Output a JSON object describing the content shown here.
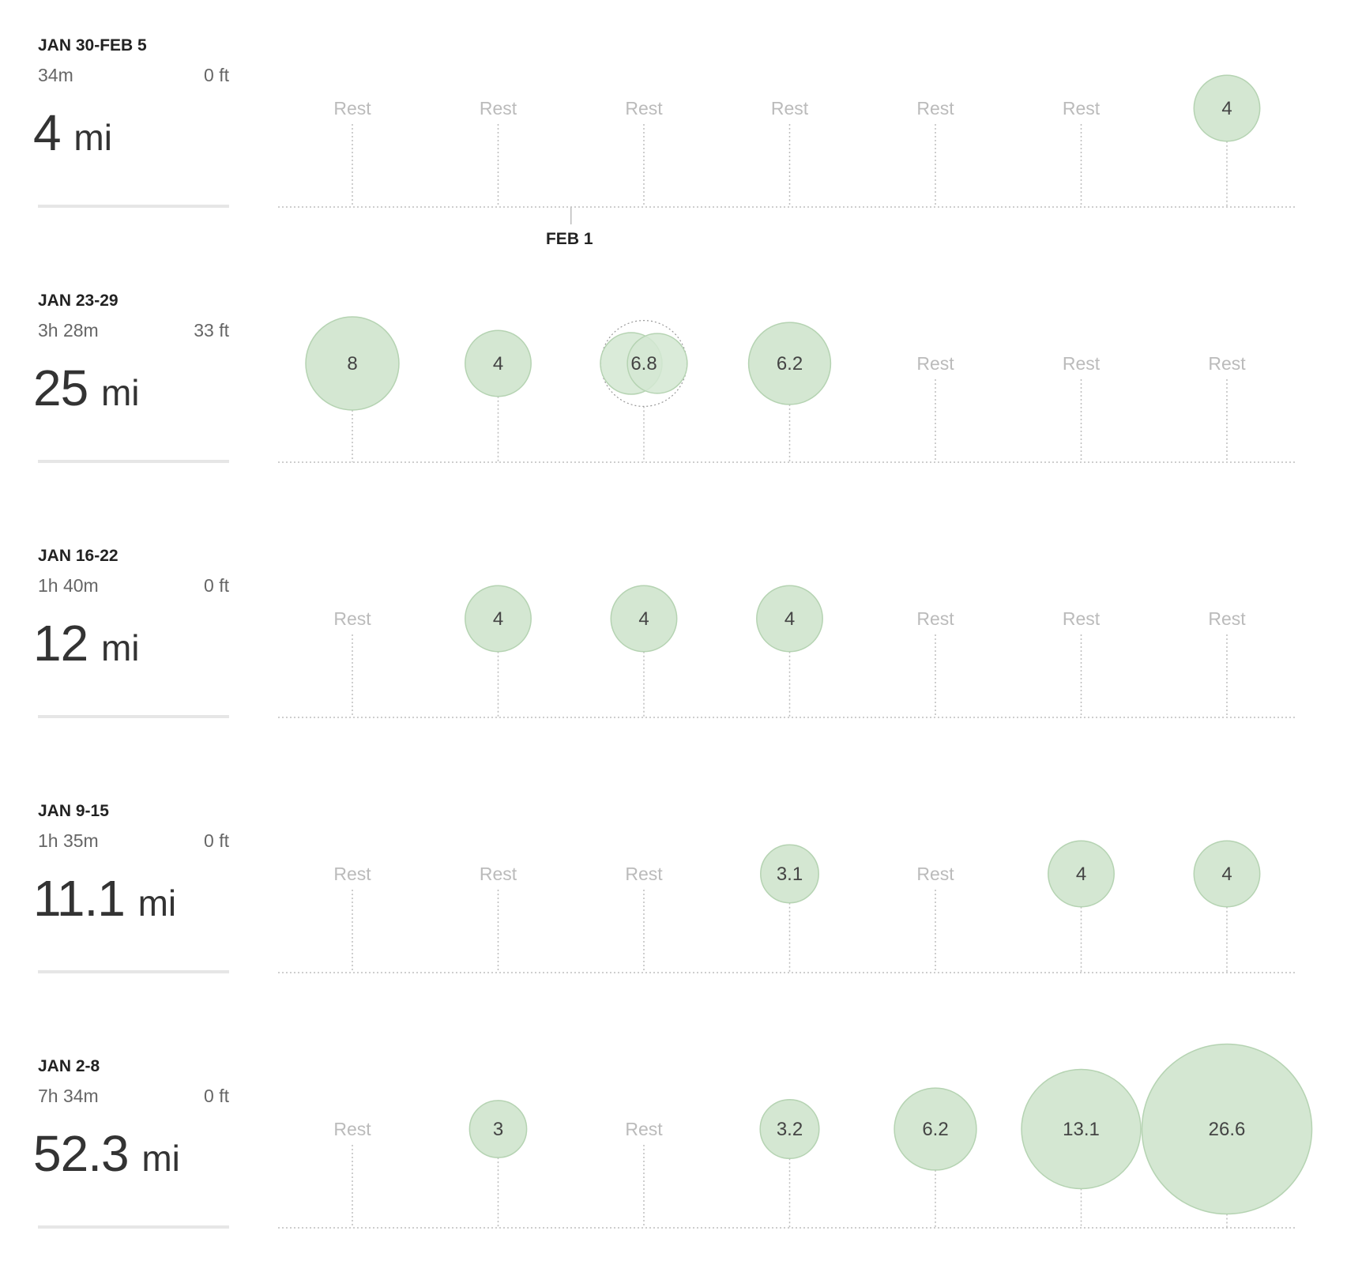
{
  "rest_label": "Rest",
  "mileage_unit": "mi",
  "colors": {
    "bubble_fill": "#d4e7d2",
    "bubble_stroke": "#b5d3b2",
    "rest_text": "#bbbbbb",
    "dotted_line": "#bdbdbd",
    "marker_text": "#222222"
  },
  "day_marker": {
    "label": "FEB 1",
    "week_index": 0,
    "between_days": [
      1,
      2
    ]
  },
  "weeks": [
    {
      "range": "JAN 30-FEB 5",
      "time": "34m",
      "elevation": "0 ft",
      "distance": "4"
    },
    {
      "range": "JAN 23-29",
      "time": "3h 28m",
      "elevation": "33 ft",
      "distance": "25"
    },
    {
      "range": "JAN 16-22",
      "time": "1h 40m",
      "elevation": "0 ft",
      "distance": "12"
    },
    {
      "range": "JAN 9-15",
      "time": "1h 35m",
      "elevation": "0 ft",
      "distance": "11.1"
    },
    {
      "range": "JAN 2-8",
      "time": "7h 34m",
      "elevation": "0 ft",
      "distance": "52.3"
    }
  ],
  "chart_data": {
    "type": "scatter",
    "encoding": "bubble area proportional to daily miles; one bubble per day, 7 days per week row",
    "series": [
      {
        "name": "JAN 30-FEB 5",
        "values": [
          null,
          null,
          null,
          null,
          null,
          null,
          4
        ],
        "labels": [
          "Rest",
          "Rest",
          "Rest",
          "Rest",
          "Rest",
          "Rest",
          "4"
        ]
      },
      {
        "name": "JAN 23-29",
        "values": [
          8,
          4,
          6.8,
          6.2,
          null,
          null,
          null
        ],
        "labels": [
          "8",
          "4",
          "6.8",
          "6.2",
          "Rest",
          "Rest",
          "Rest"
        ],
        "multi_run_day": 2,
        "multi_run_split": [
          3.5,
          3.3
        ]
      },
      {
        "name": "JAN 16-22",
        "values": [
          null,
          4,
          4,
          4,
          null,
          null,
          null
        ],
        "labels": [
          "Rest",
          "4",
          "4",
          "4",
          "Rest",
          "Rest",
          "Rest"
        ]
      },
      {
        "name": "JAN 9-15",
        "values": [
          null,
          null,
          null,
          3.1,
          null,
          4,
          4
        ],
        "labels": [
          "Rest",
          "Rest",
          "Rest",
          "3.1",
          "Rest",
          "4",
          "4"
        ]
      },
      {
        "name": "JAN 2-8",
        "values": [
          null,
          3,
          null,
          3.2,
          6.2,
          13.1,
          26.6
        ],
        "labels": [
          "Rest",
          "3",
          "Rest",
          "3.2",
          "6.2",
          "13.1",
          "26.6"
        ]
      }
    ],
    "legend": "none",
    "grid": false
  }
}
